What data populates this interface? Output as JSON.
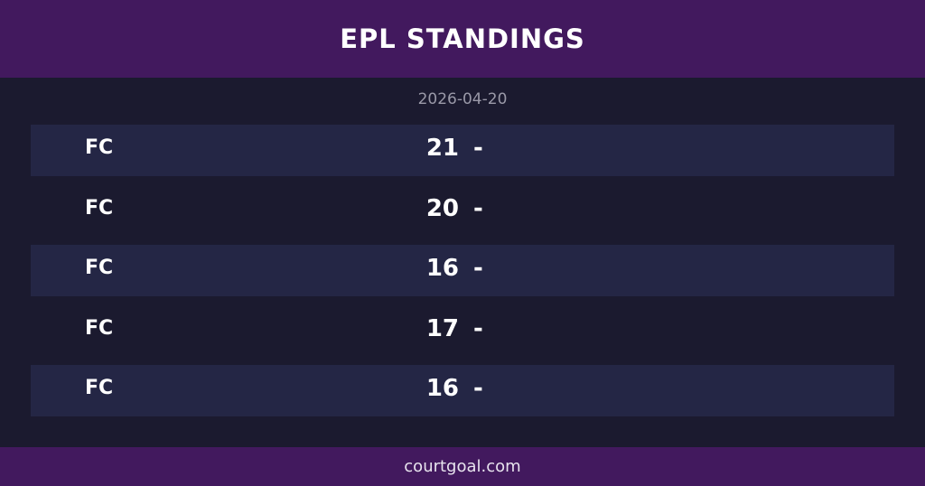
{
  "header": {
    "title": "EPL STANDINGS"
  },
  "date": "2026-04-20",
  "standings": [
    {
      "team": "FC",
      "score": "21",
      "extra": "-"
    },
    {
      "team": "FC",
      "score": "20",
      "extra": "-"
    },
    {
      "team": "FC",
      "score": "16",
      "extra": "-"
    },
    {
      "team": "FC",
      "score": "17",
      "extra": "-"
    },
    {
      "team": "FC",
      "score": "16",
      "extra": "-"
    }
  ],
  "footer": {
    "site": "courtgoal.com"
  },
  "colors": {
    "header_bg": "#42195e",
    "page_bg": "#1b1a2f",
    "row_shade": "#242645"
  }
}
